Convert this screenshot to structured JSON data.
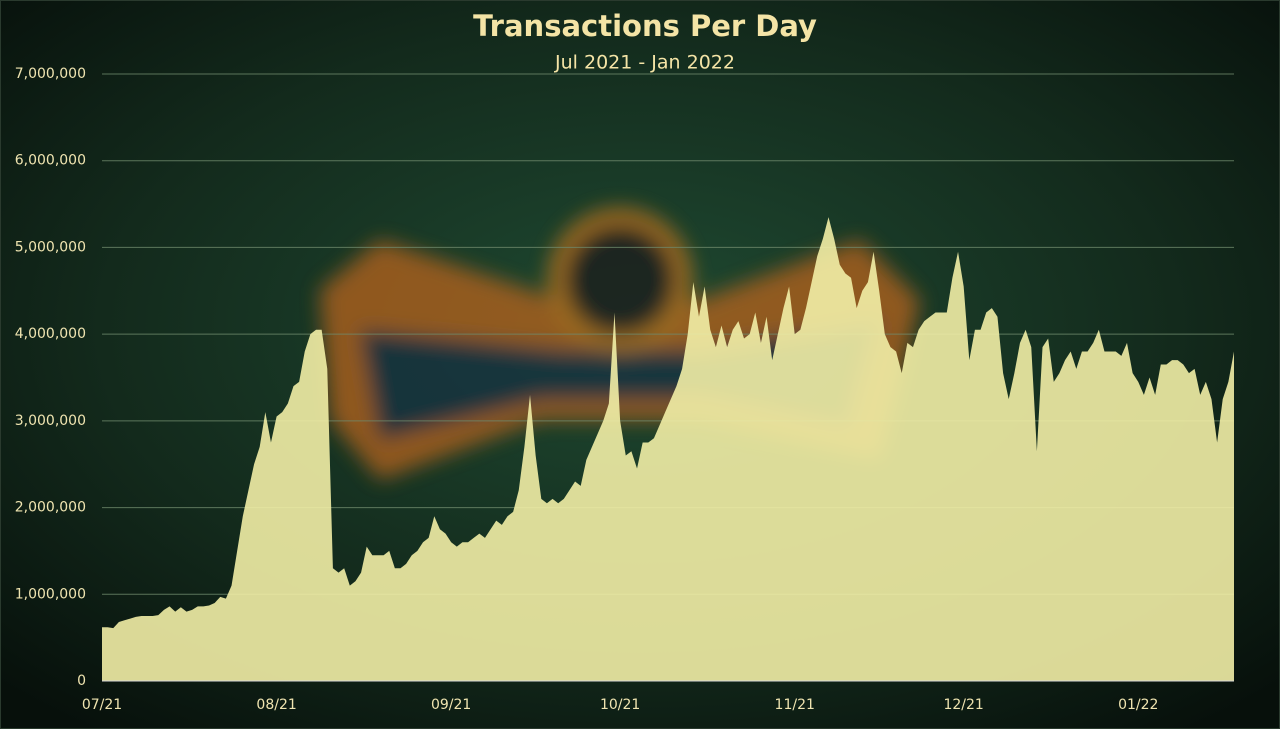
{
  "chart_data": {
    "type": "area",
    "title": "Transactions Per Day",
    "subtitle": "Jul 2021 - Jan 2022",
    "categories": [
      "07/21",
      null,
      null,
      null,
      null,
      null,
      null,
      null,
      null,
      null,
      null,
      null,
      null,
      null,
      null,
      null,
      null,
      null,
      null,
      null,
      null,
      null,
      null,
      null,
      null,
      null,
      null,
      null,
      null,
      null,
      null,
      "08/21",
      null,
      null,
      null,
      null,
      null,
      null,
      null,
      null,
      null,
      null,
      null,
      null,
      null,
      null,
      null,
      null,
      null,
      null,
      null,
      null,
      null,
      null,
      null,
      null,
      null,
      null,
      null,
      null,
      null,
      null,
      "09/21",
      null,
      null,
      null,
      null,
      null,
      null,
      null,
      null,
      null,
      null,
      null,
      null,
      null,
      null,
      null,
      null,
      null,
      null,
      null,
      null,
      null,
      null,
      null,
      null,
      null,
      null,
      null,
      null,
      null,
      "10/21",
      null,
      null,
      null,
      null,
      null,
      null,
      null,
      null,
      null,
      null,
      null,
      null,
      null,
      null,
      null,
      null,
      null,
      null,
      null,
      null,
      null,
      null,
      null,
      null,
      null,
      null,
      null,
      null,
      null,
      null,
      "11/21",
      null,
      null,
      null,
      null,
      null,
      null,
      null,
      null,
      null,
      null,
      null,
      null,
      null,
      null,
      null,
      null,
      null,
      null,
      null,
      null,
      null,
      null,
      null,
      null,
      null,
      null,
      null,
      null,
      null,
      "12/21",
      null,
      null,
      null,
      null,
      null,
      null,
      null,
      null,
      null,
      null,
      null,
      null,
      null,
      null,
      null,
      null,
      null,
      null,
      null,
      null,
      null,
      null,
      null,
      null,
      null,
      null,
      null,
      null,
      null,
      null,
      "01/22",
      null,
      null,
      null,
      null,
      null,
      null,
      null,
      null,
      null,
      null,
      null,
      null,
      null,
      null,
      null,
      null,
      null
    ],
    "values": [
      620000,
      620000,
      610000,
      680000,
      700000,
      720000,
      740000,
      750000,
      750000,
      750000,
      760000,
      820000,
      860000,
      800000,
      850000,
      800000,
      820000,
      860000,
      860000,
      870000,
      900000,
      970000,
      950000,
      1100000,
      1500000,
      1900000,
      2200000,
      2500000,
      2700000,
      3100000,
      2750000,
      3050000,
      3100000,
      3200000,
      3400000,
      3450000,
      3800000,
      4000000,
      4050000,
      4050000,
      3600000,
      1300000,
      1250000,
      1300000,
      1100000,
      1150000,
      1250000,
      1550000,
      1450000,
      1450000,
      1450000,
      1500000,
      1300000,
      1300000,
      1350000,
      1450000,
      1500000,
      1600000,
      1650000,
      1900000,
      1750000,
      1700000,
      1600000,
      1550000,
      1600000,
      1600000,
      1650000,
      1700000,
      1650000,
      1750000,
      1850000,
      1800000,
      1900000,
      1950000,
      2200000,
      2700000,
      3300000,
      2600000,
      2100000,
      2050000,
      2100000,
      2050000,
      2100000,
      2200000,
      2300000,
      2250000,
      2550000,
      2700000,
      2850000,
      3000000,
      3200000,
      4250000,
      3000000,
      2600000,
      2650000,
      2450000,
      2750000,
      2750000,
      2800000,
      2950000,
      3100000,
      3250000,
      3400000,
      3600000,
      4000000,
      4600000,
      4200000,
      4550000,
      4050000,
      3850000,
      4100000,
      3850000,
      4050000,
      4150000,
      3950000,
      4000000,
      4250000,
      3900000,
      4200000,
      3700000,
      4000000,
      4300000,
      4550000,
      4000000,
      4050000,
      4300000,
      4600000,
      4900000,
      5100000,
      5350000,
      5100000,
      4800000,
      4700000,
      4650000,
      4300000,
      4500000,
      4600000,
      4950000,
      4500000,
      4000000,
      3850000,
      3800000,
      3550000,
      3900000,
      3850000,
      4050000,
      4150000,
      4200000,
      4250000,
      4250000,
      4250000,
      4650000,
      4950000,
      4550000,
      3700000,
      4050000,
      4050000,
      4250000,
      4300000,
      4200000,
      3550000,
      3250000,
      3550000,
      3900000,
      4050000,
      3850000,
      2650000,
      3850000,
      3950000,
      3450000,
      3550000,
      3700000,
      3800000,
      3600000,
      3800000,
      3800000,
      3900000,
      4050000,
      3800000,
      3800000,
      3800000,
      3750000,
      3900000,
      3550000,
      3450000,
      3300000,
      3500000,
      3300000,
      3650000,
      3650000,
      3700000,
      3700000,
      3650000,
      3550000,
      3600000,
      3300000,
      3450000,
      3250000,
      2750000,
      3250000,
      3450000,
      3800000
    ],
    "color": "#f2eea6",
    "ylim": [
      0,
      7000000
    ],
    "yticks": [
      0,
      {
        "value": 1000000,
        "label": "1,000,000"
      },
      {
        "value": 2000000,
        "label": "2,000,000"
      },
      {
        "value": 3000000,
        "label": "3,000,000"
      },
      {
        "value": 4000000,
        "label": "4,000,000"
      },
      {
        "value": 5000000,
        "label": "5,000,000"
      },
      {
        "value": 6000000,
        "label": "6,000,000"
      },
      {
        "value": 7000000,
        "label": "7,000,000"
      }
    ],
    "grid": true
  }
}
